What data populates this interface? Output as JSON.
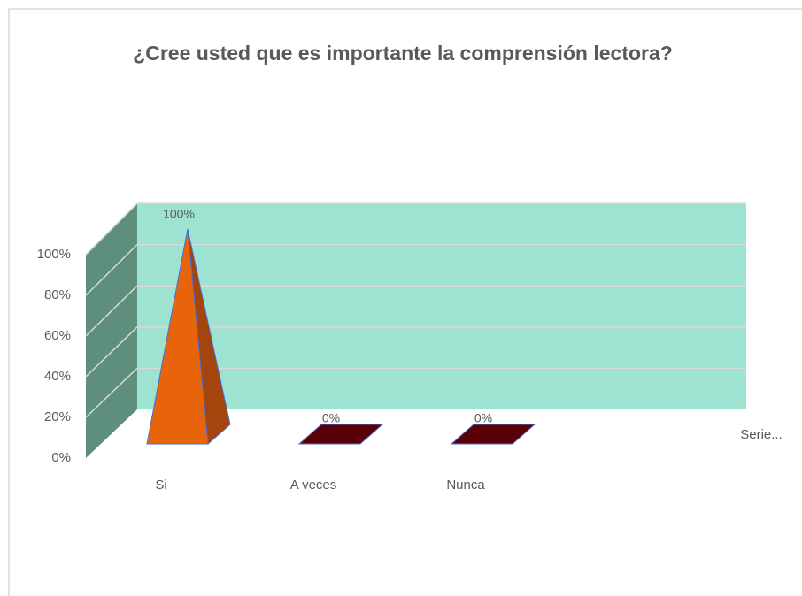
{
  "chart_data": {
    "type": "pyramid3d",
    "title": "¿Cree usted que es importante la comprensión lectora?",
    "categories": [
      "Si",
      "A veces",
      "Nunca"
    ],
    "series": [
      {
        "name": "Serie...",
        "color": "#e8640a",
        "values": [
          100,
          0,
          0
        ],
        "value_labels": [
          "100%",
          "0%",
          "0%"
        ]
      }
    ],
    "ylim": [
      0,
      100
    ],
    "yticks": [
      {
        "value": 0,
        "label": "0%"
      },
      {
        "value": 20,
        "label": "20%"
      },
      {
        "value": 40,
        "label": "40%"
      },
      {
        "value": 60,
        "label": "60%"
      },
      {
        "value": 80,
        "label": "80%"
      },
      {
        "value": 100,
        "label": "100%"
      }
    ],
    "grid": true,
    "legend": "right"
  }
}
